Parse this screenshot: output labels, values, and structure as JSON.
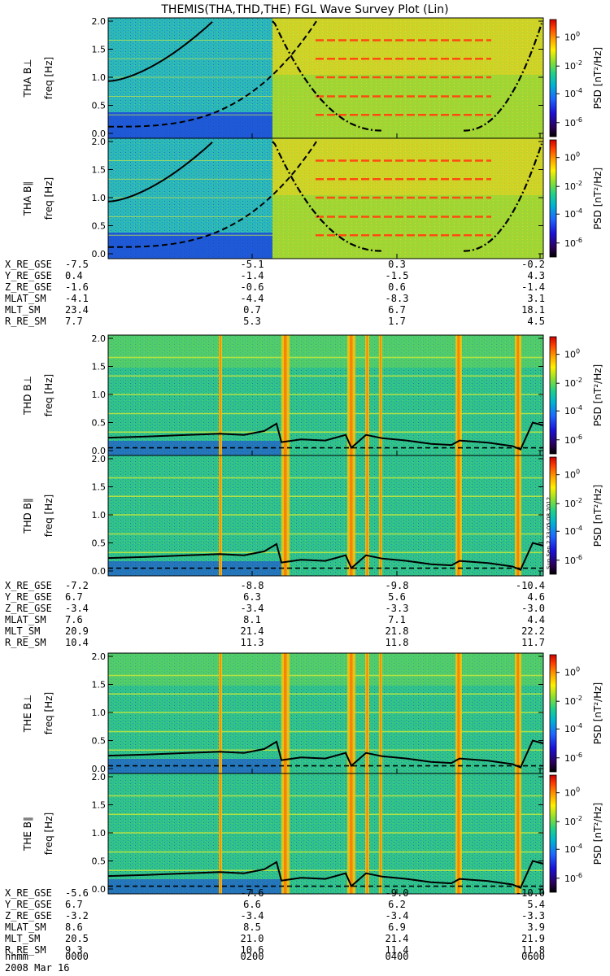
{
  "title": "THEMIS(THA,THD,THE) FGL Wave Survey Plot (Lin)",
  "stamp": "Sun Sep  2 23:05:08 2012",
  "colorbar": {
    "label_text": "PSD",
    "label_units": "[nT²/Hz]",
    "ticks": [
      {
        "base": "10",
        "exp": "0"
      },
      {
        "base": "10",
        "exp": "-2"
      },
      {
        "base": "10",
        "exp": "-4"
      },
      {
        "base": "10",
        "exp": "-6"
      }
    ]
  },
  "colors": {
    "colormap": [
      "#000000",
      "#2a0058",
      "#1b10d8",
      "#1e66ff",
      "#00b4d2",
      "#22d088",
      "#8ee030",
      "#fff000",
      "#ff9900",
      "#ff3b00",
      "#cc0000"
    ],
    "background_thd_the": "#2fc38a",
    "overlay_line": "#000000"
  },
  "chart_data": {
    "type": "heatmap",
    "ylabel": "freq [Hz]",
    "ylim": [
      0.0,
      2.0
    ],
    "y_ticks": [
      "0.0",
      "0.5",
      "1.0",
      "1.5",
      "2.0"
    ],
    "time_ticks": [
      "0000",
      "0200",
      "0400",
      "0600"
    ],
    "date": "2008 Mar 16",
    "panels": [
      {
        "label": "THA B⊥",
        "probe": "THA"
      },
      {
        "label": "THA B∥",
        "probe": "THA"
      },
      {
        "label": "THD B⊥",
        "probe": "THD"
      },
      {
        "label": "THD B∥",
        "probe": "THD"
      },
      {
        "label": "THE B⊥",
        "probe": "THE"
      },
      {
        "label": "THE B∥",
        "probe": "THE"
      }
    ],
    "ephemeris": [
      {
        "probe": "THA",
        "rows": [
          {
            "name": "X_RE_GSE",
            "values": [
              "-7.5",
              "-5.1",
              "0.3",
              "-0.2"
            ]
          },
          {
            "name": "Y_RE_GSE",
            "values": [
              "0.4",
              "-1.4",
              "-1.5",
              "4.3"
            ]
          },
          {
            "name": "Z_RE_GSE",
            "values": [
              "-1.6",
              "-0.6",
              "0.6",
              "-1.4"
            ]
          },
          {
            "name": "MLAT_SM",
            "values": [
              "-4.1",
              "-4.4",
              "-8.3",
              "3.1"
            ]
          },
          {
            "name": "MLT_SM",
            "values": [
              "23.4",
              "0.7",
              "6.7",
              "18.1"
            ]
          },
          {
            "name": "R_RE_SM",
            "values": [
              "7.7",
              "5.3",
              "1.7",
              "4.5"
            ]
          }
        ]
      },
      {
        "probe": "THD",
        "rows": [
          {
            "name": "X_RE_GSE",
            "values": [
              "-7.2",
              "-8.8",
              "-9.8",
              "-10.4"
            ]
          },
          {
            "name": "Y_RE_GSE",
            "values": [
              "6.7",
              "6.3",
              "5.6",
              "4.6"
            ]
          },
          {
            "name": "Z_RE_GSE",
            "values": [
              "-3.4",
              "-3.4",
              "-3.3",
              "-3.0"
            ]
          },
          {
            "name": "MLAT_SM",
            "values": [
              "7.6",
              "8.1",
              "7.1",
              "4.4"
            ]
          },
          {
            "name": "MLT_SM",
            "values": [
              "20.9",
              "21.4",
              "21.8",
              "22.2"
            ]
          },
          {
            "name": "R_RE_SM",
            "values": [
              "10.4",
              "11.3",
              "11.8",
              "11.7"
            ]
          }
        ]
      },
      {
        "probe": "THE",
        "rows": [
          {
            "name": "X_RE_GSE",
            "values": [
              "-5.6",
              "-7.6",
              "-9.0",
              "-10.0"
            ]
          },
          {
            "name": "Y_RE_GSE",
            "values": [
              "6.7",
              "6.6",
              "6.2",
              "5.4"
            ]
          },
          {
            "name": "Z_RE_GSE",
            "values": [
              "-3.2",
              "-3.4",
              "-3.4",
              "-3.3"
            ]
          },
          {
            "name": "MLAT_SM",
            "values": [
              "8.6",
              "8.5",
              "6.9",
              "3.9"
            ]
          },
          {
            "name": "MLT_SM",
            "values": [
              "20.5",
              "21.0",
              "21.4",
              "21.9"
            ]
          },
          {
            "name": "R_RE_SM",
            "values": [
              "9.3",
              "10.6",
              "11.4",
              "11.8"
            ]
          }
        ]
      }
    ],
    "time_axis_label": "hhmm"
  }
}
